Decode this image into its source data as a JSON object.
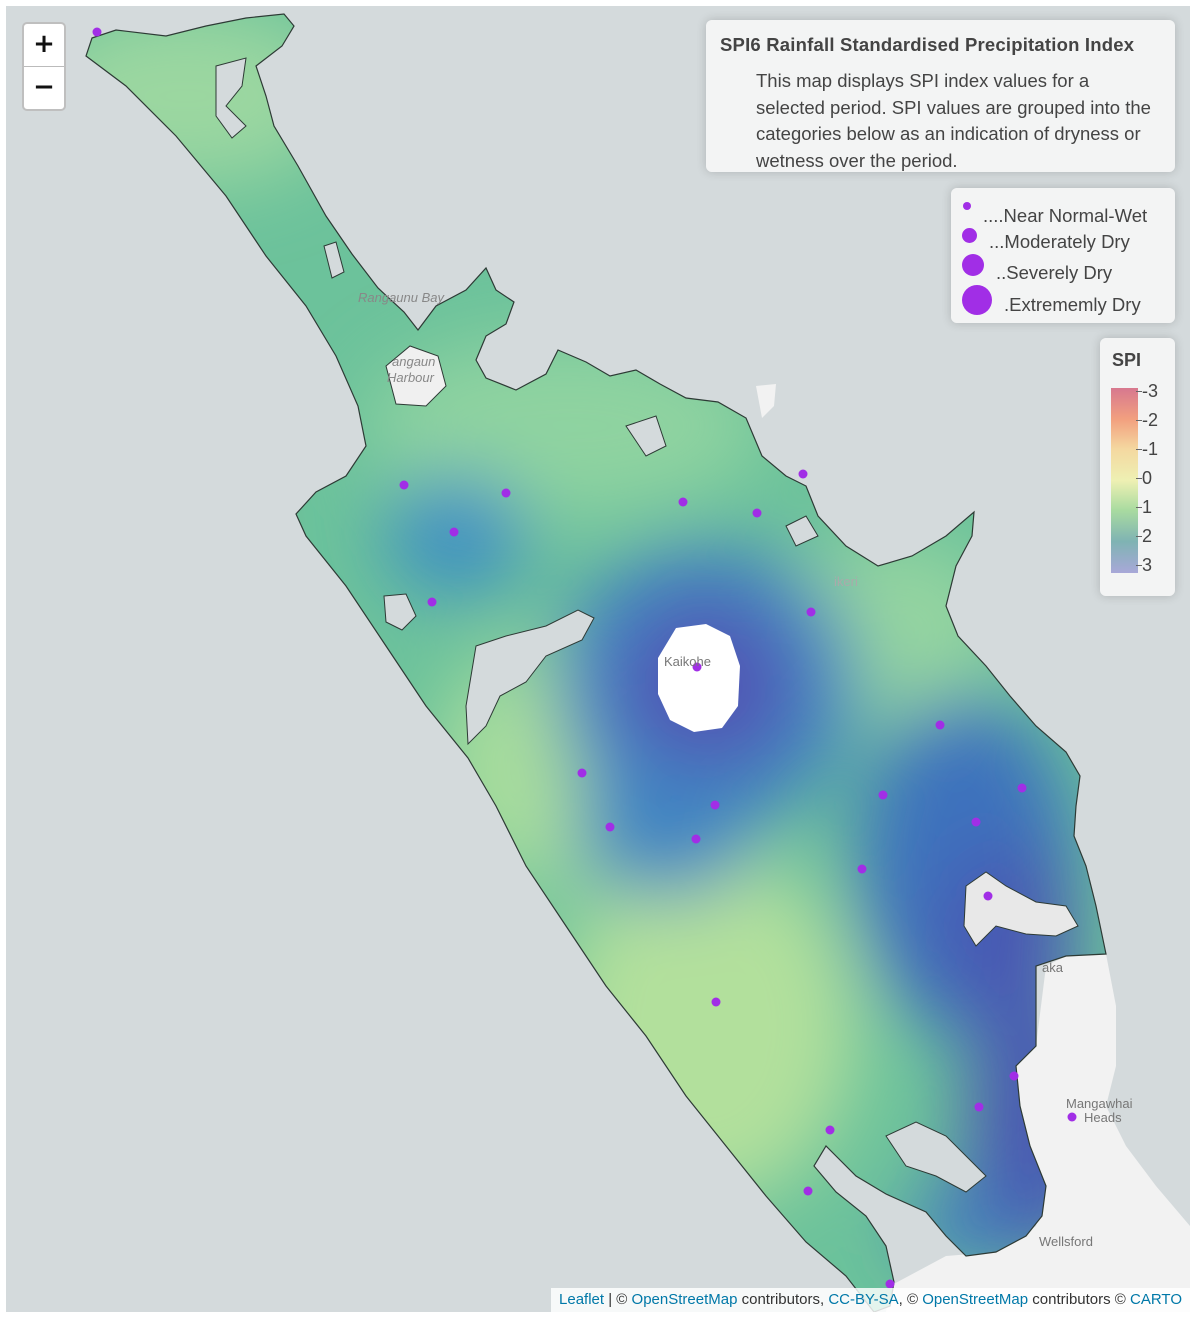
{
  "zoom": {
    "in_label": "+",
    "out_label": "−"
  },
  "info": {
    "title": "SPI6 Rainfall Standardised Precipitation Index",
    "text": "This map displays SPI index values for a selected period. SPI values are grouped into the categories below as an indication of dryness or wetness over the period."
  },
  "size_legend": [
    {
      "label": "....Near Normal-Wet"
    },
    {
      "label": "...Moderately Dry"
    },
    {
      "label": "..Severely Dry"
    },
    {
      "label": ".Extrememly Dry"
    }
  ],
  "color_legend": {
    "title": "SPI",
    "ticks": [
      "-3",
      "-2",
      "-1",
      "0",
      "1",
      "2",
      "3"
    ]
  },
  "place_labels": {
    "rangaunu_bay": "Rangaunu Bay",
    "rangaunu_harbour_1": "angaun",
    "rangaunu_harbour_2": "Harbour",
    "kaikohe": "Kaikohe",
    "kaiwaka": "aka",
    "mangawhai_1": "Mangawhai",
    "mangawhai_2": "Heads",
    "wellsford": "Wellsford",
    "kerikeri": "ikeri"
  },
  "attribution": {
    "leaflet": "Leaflet",
    "sep1": " | © ",
    "osm1": "OpenStreetMap",
    "contrib1": " contributors, ",
    "ccbysa": "CC-BY-SA",
    "sep2": ", © ",
    "osm2": "OpenStreetMap",
    "contrib2": " contributors © ",
    "carto": "CARTO"
  },
  "colors": {
    "marker": "#a12ee6"
  }
}
